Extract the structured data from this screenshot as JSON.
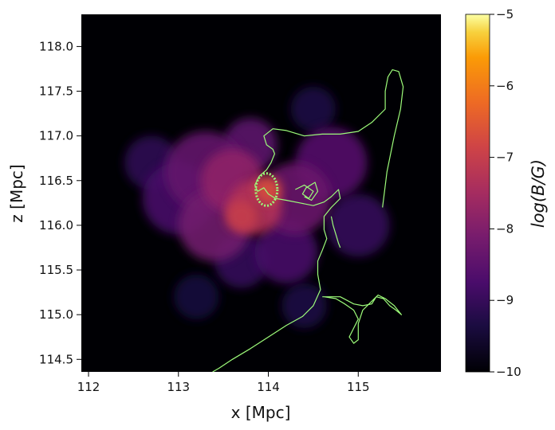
{
  "chart_data": {
    "type": "heatmap",
    "xlabel": "x [Mpc]",
    "ylabel": "z [Mpc]",
    "xlim": [
      111.92,
      115.92
    ],
    "ylim": [
      114.36,
      118.36
    ],
    "xticks": [
      112,
      113,
      114,
      115
    ],
    "yticks": [
      114.5,
      115.0,
      115.5,
      116.0,
      116.5,
      117.0,
      117.5,
      118.0
    ],
    "xtick_labels": [
      "112",
      "113",
      "114",
      "115"
    ],
    "ytick_labels": [
      "114.5",
      "115.0",
      "115.5",
      "116.0",
      "116.5",
      "117.0",
      "117.5",
      "118.0"
    ],
    "colorbar": {
      "label": "log(B/G)",
      "colormap": "inferno",
      "range": [
        -10,
        -5
      ],
      "ticks": [
        -10,
        -9,
        -8,
        -7,
        -6,
        -5
      ],
      "tick_labels": [
        "−10",
        "−9",
        "−8",
        "−7",
        "−6",
        "−5"
      ]
    },
    "field_blobs": [
      {
        "x": 113.85,
        "z": 116.2,
        "r": 0.3,
        "v": -7.3
      },
      {
        "x": 113.6,
        "z": 116.5,
        "r": 0.35,
        "v": -7.8
      },
      {
        "x": 113.4,
        "z": 116.0,
        "r": 0.4,
        "v": -8.2
      },
      {
        "x": 113.3,
        "z": 116.6,
        "r": 0.45,
        "v": -8.4
      },
      {
        "x": 114.3,
        "z": 116.3,
        "r": 0.4,
        "v": -8.3
      },
      {
        "x": 114.7,
        "z": 116.7,
        "r": 0.4,
        "v": -8.6
      },
      {
        "x": 114.2,
        "z": 115.7,
        "r": 0.35,
        "v": -8.8
      },
      {
        "x": 113.0,
        "z": 116.3,
        "r": 0.4,
        "v": -8.8
      },
      {
        "x": 113.7,
        "z": 115.6,
        "r": 0.3,
        "v": -9.0
      },
      {
        "x": 112.7,
        "z": 116.7,
        "r": 0.3,
        "v": -9.1
      },
      {
        "x": 115.0,
        "z": 116.0,
        "r": 0.35,
        "v": -9.0
      },
      {
        "x": 113.8,
        "z": 116.9,
        "r": 0.3,
        "v": -8.5
      },
      {
        "x": 114.4,
        "z": 115.1,
        "r": 0.25,
        "v": -9.3
      },
      {
        "x": 114.5,
        "z": 117.3,
        "r": 0.25,
        "v": -9.3
      },
      {
        "x": 113.2,
        "z": 115.2,
        "r": 0.25,
        "v": -9.4
      },
      {
        "x": 114.0,
        "z": 116.4,
        "r": 0.15,
        "v": -6.7
      },
      {
        "x": 113.7,
        "z": 116.1,
        "r": 0.18,
        "v": -7.0
      }
    ],
    "series": [
      {
        "points": [
          [
            115.27,
            116.2
          ],
          [
            115.32,
            116.6
          ],
          [
            115.4,
            117.0
          ],
          [
            115.47,
            117.3
          ],
          [
            115.5,
            117.55
          ],
          [
            115.45,
            117.72
          ],
          [
            115.38,
            117.74
          ],
          [
            115.33,
            117.66
          ],
          [
            115.3,
            117.5
          ],
          [
            115.3,
            117.3
          ],
          [
            115.15,
            117.15
          ],
          [
            115.0,
            117.05
          ],
          [
            114.8,
            117.02
          ],
          [
            114.6,
            117.02
          ],
          [
            114.4,
            117.0
          ],
          [
            114.2,
            117.06
          ],
          [
            114.05,
            117.08
          ],
          [
            113.95,
            117.0
          ],
          [
            113.98,
            116.9
          ],
          [
            114.05,
            116.85
          ],
          [
            114.07,
            116.8
          ],
          [
            114.03,
            116.7
          ],
          [
            113.98,
            116.62
          ],
          [
            113.9,
            116.55
          ],
          [
            113.85,
            116.45
          ],
          [
            113.88,
            116.38
          ],
          [
            113.95,
            116.42
          ],
          [
            114.0,
            116.35
          ],
          [
            114.08,
            116.3
          ],
          [
            114.2,
            116.28
          ],
          [
            114.35,
            116.25
          ],
          [
            114.5,
            116.22
          ],
          [
            114.62,
            116.26
          ],
          [
            114.7,
            116.32
          ],
          [
            114.78,
            116.4
          ],
          [
            114.8,
            116.3
          ],
          [
            114.7,
            116.2
          ],
          [
            114.62,
            116.1
          ],
          [
            114.62,
            115.95
          ],
          [
            114.65,
            115.85
          ],
          [
            114.6,
            115.72
          ],
          [
            114.55,
            115.6
          ],
          [
            114.55,
            115.45
          ],
          [
            114.58,
            115.28
          ],
          [
            114.5,
            115.1
          ],
          [
            114.38,
            114.98
          ],
          [
            114.2,
            114.88
          ],
          [
            114.0,
            114.75
          ],
          [
            113.8,
            114.62
          ],
          [
            113.6,
            114.5
          ],
          [
            113.45,
            114.4
          ],
          [
            113.38,
            114.36
          ]
        ]
      },
      {
        "points": [
          [
            114.6,
            115.2
          ],
          [
            114.8,
            115.2
          ],
          [
            114.95,
            115.12
          ],
          [
            115.05,
            115.1
          ],
          [
            115.15,
            115.12
          ],
          [
            115.2,
            115.2
          ],
          [
            115.28,
            115.18
          ],
          [
            115.35,
            115.1
          ],
          [
            115.42,
            115.05
          ],
          [
            115.48,
            115.0
          ],
          [
            115.4,
            115.1
          ],
          [
            115.3,
            115.18
          ],
          [
            115.22,
            115.22
          ],
          [
            115.15,
            115.15
          ],
          [
            115.05,
            115.05
          ],
          [
            115.0,
            114.9
          ],
          [
            115.0,
            114.72
          ],
          [
            114.95,
            114.68
          ],
          [
            114.9,
            114.75
          ],
          [
            114.95,
            114.85
          ],
          [
            115.0,
            114.95
          ],
          [
            114.95,
            115.05
          ],
          [
            114.85,
            115.12
          ],
          [
            114.75,
            115.18
          ],
          [
            114.62,
            115.2
          ]
        ]
      },
      {
        "points": [
          [
            114.3,
            116.4
          ],
          [
            114.4,
            116.45
          ],
          [
            114.5,
            116.38
          ],
          [
            114.45,
            116.3
          ],
          [
            114.38,
            116.35
          ],
          [
            114.42,
            116.42
          ],
          [
            114.52,
            116.48
          ],
          [
            114.55,
            116.38
          ],
          [
            114.48,
            116.28
          ],
          [
            114.4,
            116.32
          ]
        ]
      },
      {
        "points": [
          [
            114.7,
            116.1
          ],
          [
            114.72,
            116.0
          ],
          [
            114.75,
            115.9
          ],
          [
            114.78,
            115.8
          ],
          [
            114.8,
            115.75
          ]
        ]
      }
    ],
    "dense_cluster": {
      "x": 113.98,
      "z": 116.4,
      "rx": 0.12,
      "rz": 0.18
    }
  }
}
